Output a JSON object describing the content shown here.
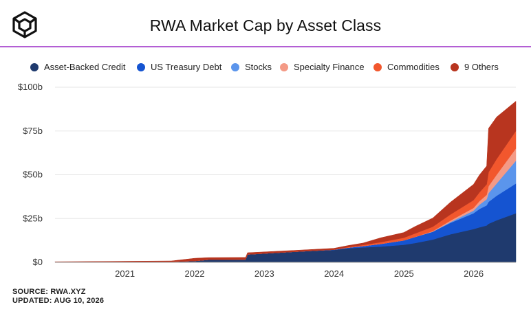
{
  "header": {
    "title": "RWA Market Cap by Asset Class",
    "logo_icon": "cube-logo-icon"
  },
  "legend": [
    {
      "label": "Asset-Backed Credit",
      "color": "#1f3a6e"
    },
    {
      "label": "US Treasury Debt",
      "color": "#1554d1"
    },
    {
      "label": "Stocks",
      "color": "#5b95ec"
    },
    {
      "label": "Specialty Finance",
      "color": "#f49a86"
    },
    {
      "label": "Commodities",
      "color": "#f2572d"
    },
    {
      "label": "9 Others",
      "color": "#b8351f"
    }
  ],
  "footer": {
    "source": "SOURCE: RWA.XYZ",
    "updated": "UPDATED: AUG 10, 2026"
  },
  "chart_data": {
    "type": "area",
    "stacked": true,
    "title": "RWA Market Cap by Asset Class",
    "xlabel": "",
    "ylabel": "",
    "xlim": [
      "2020-01-01",
      "2026-08-10"
    ],
    "ylim": [
      0,
      100
    ],
    "y_ticks": [
      0,
      25,
      50,
      75,
      100
    ],
    "y_tick_labels": [
      "$0",
      "$25b",
      "$50b",
      "$75b",
      "$100b"
    ],
    "x_ticks": [
      "2021",
      "2022",
      "2023",
      "2024",
      "2025",
      "2026"
    ],
    "grid": true,
    "legend_position": "top",
    "x": [
      "2020-01-01",
      "2021-09-01",
      "2022-01-01",
      "2022-03-15",
      "2022-09-25",
      "2022-10-05",
      "2023-06-01",
      "2023-12-31",
      "2024-03-15",
      "2024-06-01",
      "2024-09-01",
      "2024-12-31",
      "2025-03-01",
      "2025-06-01",
      "2025-09-01",
      "2025-12-31",
      "2026-02-01",
      "2026-03-10",
      "2026-03-20",
      "2026-05-01",
      "2026-08-10"
    ],
    "series": [
      {
        "name": "Asset-Backed Credit",
        "color": "#1f3a6e",
        "values": [
          0.2,
          0.3,
          0.8,
          1.5,
          1.6,
          4.5,
          6.0,
          7.0,
          8.0,
          8.5,
          9.0,
          10.0,
          11.0,
          13.0,
          16.0,
          19.0,
          20.0,
          21.0,
          22.0,
          24.0,
          28.0
        ]
      },
      {
        "name": "US Treasury Debt",
        "color": "#1554d1",
        "values": [
          0,
          0,
          0,
          0,
          0,
          0,
          0,
          0.2,
          0.4,
          0.8,
          1.5,
          2.5,
          3.5,
          4.5,
          6.5,
          9.0,
          10.5,
          11.5,
          12.5,
          14.0,
          17.0
        ]
      },
      {
        "name": "Stocks",
        "color": "#5b95ec",
        "values": [
          0,
          0,
          0,
          0,
          0,
          0,
          0,
          0,
          0,
          0,
          0,
          0,
          0,
          0,
          0.5,
          1.5,
          2.5,
          3.5,
          5.0,
          7.0,
          13.0
        ]
      },
      {
        "name": "Specialty Finance",
        "color": "#f49a86",
        "values": [
          0,
          0,
          0,
          0,
          0,
          0,
          0,
          0,
          0,
          0,
          0,
          0,
          0,
          0.3,
          0.8,
          1.5,
          2.0,
          2.5,
          4.0,
          5.0,
          7.0
        ]
      },
      {
        "name": "Commodities",
        "color": "#f2572d",
        "values": [
          0,
          0,
          0,
          0,
          0,
          0,
          0,
          0,
          0.3,
          0.6,
          1.0,
          1.5,
          2.0,
          2.5,
          3.5,
          4.5,
          5.0,
          6.0,
          8.0,
          9.0,
          10.0
        ]
      },
      {
        "name": "9 Others",
        "color": "#b8351f",
        "values": [
          0.1,
          0.5,
          1.5,
          1.2,
          1.2,
          1.0,
          0.8,
          0.8,
          0.9,
          1.1,
          2.5,
          3.0,
          4.0,
          5.0,
          7.0,
          9.0,
          10.0,
          10.5,
          25.0,
          24.0,
          17.0
        ]
      }
    ]
  }
}
